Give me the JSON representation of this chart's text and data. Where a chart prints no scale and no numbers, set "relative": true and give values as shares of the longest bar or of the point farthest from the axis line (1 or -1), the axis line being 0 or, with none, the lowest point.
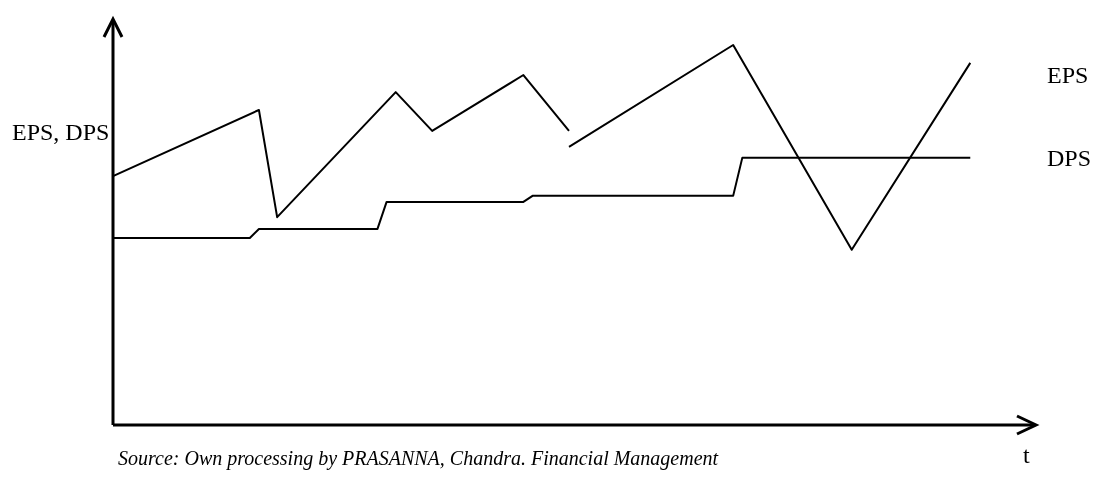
{
  "chart_data": {
    "type": "line",
    "relative": true,
    "ylabel": "EPS, DPS",
    "xlabel": "t",
    "annotations": [
      "Source: Own processing by PRASANNA, Chandra. Financial Management"
    ],
    "categories": [
      null,
      null,
      null,
      null,
      null,
      null,
      null,
      null,
      null,
      null,
      null,
      null,
      null,
      null,
      null,
      null,
      null,
      null,
      null,
      null,
      null,
      null,
      null,
      null,
      null,
      null,
      null,
      null,
      null,
      null,
      null,
      null,
      null,
      null,
      null,
      null,
      null,
      null,
      null,
      null,
      null,
      null,
      null,
      null,
      null,
      null,
      null,
      null,
      null,
      null,
      null,
      null,
      null,
      null,
      null,
      null,
      null,
      null,
      null,
      null,
      null,
      null,
      null,
      null,
      null,
      null,
      null,
      null,
      null,
      null,
      null,
      null,
      null,
      null,
      null,
      null,
      null,
      null,
      null,
      null,
      null,
      null,
      null,
      null,
      null,
      null,
      null,
      null,
      null,
      null,
      null,
      null,
      null,
      null,
      null,
      null,
      null,
      null,
      null,
      null,
      null
    ],
    "series": [
      {
        "name": "EPS",
        "color": "#000000",
        "values": [
          0.655,
          null,
          null,
          null,
          null,
          null,
          null,
          null,
          null,
          null,
          null,
          null,
          null,
          null,
          null,
          null,
          0.829,
          null,
          0.547,
          null,
          null,
          null,
          null,
          null,
          null,
          null,
          null,
          null,
          null,
          null,
          null,
          0.876,
          null,
          null,
          null,
          0.774,
          null,
          null,
          null,
          null,
          null,
          null,
          null,
          null,
          null,
          0.921,
          null,
          null,
          null,
          null,
          0.774,
          null,
          null,
          null,
          null,
          null,
          null,
          null,
          null,
          null,
          null,
          null,
          null,
          null,
          null,
          null,
          null,
          null,
          null,
          null,
          null,
          null,
          null,
          null,
          null,
          null,
          null,
          null,
          null,
          null,
          null,
          null,
          null,
          null,
          null,
          null,
          null,
          null,
          null,
          null,
          null,
          null,
          null,
          null,
          null,
          null,
          null,
          null,
          null,
          null,
          null
        ]
      },
      {
        "color": "#000000",
        "values": [
          null,
          null,
          null,
          null,
          null,
          null,
          null,
          null,
          null,
          null,
          null,
          null,
          null,
          null,
          null,
          null,
          null,
          null,
          null,
          null,
          null,
          null,
          null,
          null,
          null,
          null,
          null,
          null,
          null,
          null,
          null,
          null,
          null,
          null,
          null,
          null,
          null,
          null,
          null,
          null,
          null,
          null,
          null,
          null,
          null,
          null,
          null,
          null,
          null,
          null,
          0.732,
          null,
          null,
          null,
          null,
          null,
          null,
          null,
          null,
          null,
          null,
          null,
          null,
          null,
          null,
          null,
          null,
          null,
          1,
          null,
          null,
          null,
          null,
          null,
          null,
          null,
          null,
          null,
          null,
          null,
          null,
          0.461,
          null,
          null,
          null,
          null,
          null,
          null,
          null,
          null,
          null,
          null,
          null,
          null,
          0.953,
          null,
          null,
          null,
          null,
          null,
          null
        ]
      },
      {
        "name": "DPS",
        "color": "#000000",
        "values": [
          0.492,
          null,
          null,
          null,
          null,
          null,
          null,
          null,
          null,
          null,
          null,
          null,
          null,
          null,
          null,
          0.492,
          0.516,
          null,
          null,
          null,
          null,
          null,
          null,
          null,
          null,
          null,
          null,
          null,
          null,
          0.516,
          0.587,
          null,
          null,
          null,
          null,
          null,
          null,
          null,
          null,
          null,
          null,
          null,
          null,
          null,
          null,
          0.587,
          0.603,
          null,
          null,
          null,
          null,
          null,
          null,
          null,
          null,
          null,
          null,
          null,
          null,
          null,
          null,
          null,
          null,
          null,
          null,
          null,
          null,
          null,
          0.603,
          0.703,
          null,
          null,
          null,
          null,
          null,
          null,
          null,
          null,
          null,
          null,
          null,
          null,
          null,
          null,
          null,
          null,
          null,
          null,
          null,
          null,
          null,
          null,
          null,
          null,
          0.703,
          null,
          null,
          null,
          null,
          null,
          null
        ]
      }
    ]
  }
}
